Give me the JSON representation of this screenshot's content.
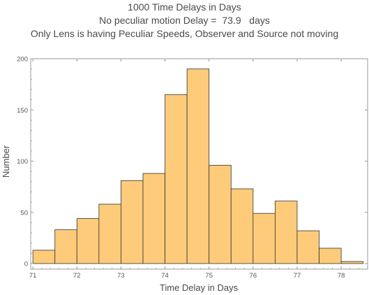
{
  "chart_data": {
    "type": "bar",
    "title_lines": [
      "1000 Time Delays in Days",
      "No peculiar motion Delay =  73.9   days",
      "Only Lens is having Peculiar Speeds, Observer and Source not moving"
    ],
    "xlabel": "Time Delay in Days",
    "ylabel": "Number",
    "xlim": [
      70.95,
      78.6
    ],
    "ylim": [
      0,
      200
    ],
    "x_ticks": [
      71,
      72,
      73,
      74,
      75,
      76,
      77,
      78
    ],
    "y_ticks": [
      0,
      50,
      100,
      150,
      200
    ],
    "bin_width": 0.5,
    "bins": [
      {
        "start": 71.0,
        "end": 71.5,
        "count": 13
      },
      {
        "start": 71.5,
        "end": 72.0,
        "count": 33
      },
      {
        "start": 72.0,
        "end": 72.5,
        "count": 44
      },
      {
        "start": 72.5,
        "end": 73.0,
        "count": 58
      },
      {
        "start": 73.0,
        "end": 73.5,
        "count": 81
      },
      {
        "start": 73.5,
        "end": 74.0,
        "count": 88
      },
      {
        "start": 74.0,
        "end": 74.5,
        "count": 165
      },
      {
        "start": 74.5,
        "end": 75.0,
        "count": 190
      },
      {
        "start": 75.0,
        "end": 75.5,
        "count": 96
      },
      {
        "start": 75.5,
        "end": 76.0,
        "count": 73
      },
      {
        "start": 76.0,
        "end": 76.5,
        "count": 49
      },
      {
        "start": 76.5,
        "end": 77.0,
        "count": 61
      },
      {
        "start": 77.0,
        "end": 77.5,
        "count": 32
      },
      {
        "start": 77.5,
        "end": 78.0,
        "count": 15
      },
      {
        "start": 78.0,
        "end": 78.5,
        "count": 2
      }
    ],
    "bar_fill": "#fdcb7a",
    "bar_stroke": "#333333",
    "frame_color": "#999999",
    "grid": false
  }
}
